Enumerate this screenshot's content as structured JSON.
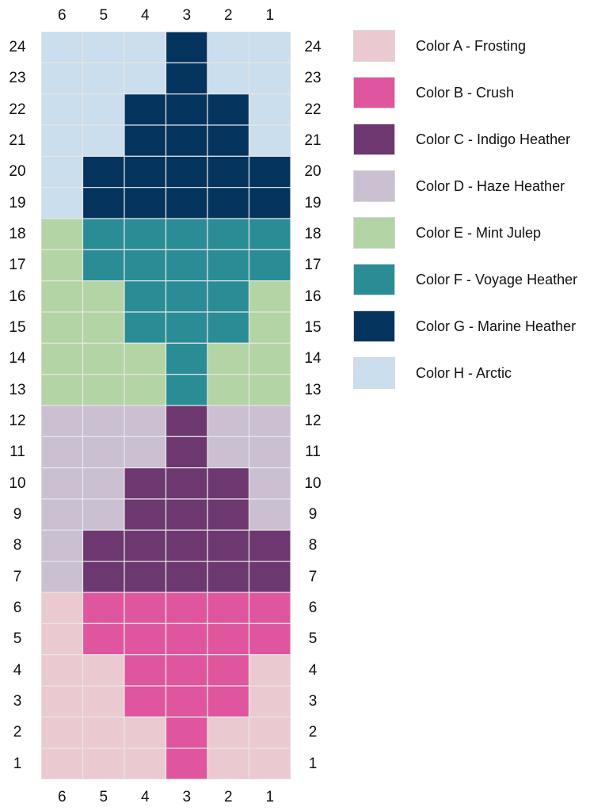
{
  "chart_data": {
    "type": "heatmap",
    "columns": [
      "6",
      "5",
      "4",
      "3",
      "2",
      "1"
    ],
    "rows": [
      "24",
      "23",
      "22",
      "21",
      "20",
      "19",
      "18",
      "17",
      "16",
      "15",
      "14",
      "13",
      "12",
      "11",
      "10",
      "9",
      "8",
      "7",
      "6",
      "5",
      "4",
      "3",
      "2",
      "1"
    ],
    "grid": [
      "HHHGHH",
      "HHHGHH",
      "HHGGGH",
      "HHGGGH",
      "HGGGGG",
      "HGGGGG",
      "EFFFFF",
      "EFFFFF",
      "EEFFFE",
      "EEFFFE",
      "EEEFEE",
      "EEEFEE",
      "DDDCDD",
      "DDDCDD",
      "DDCCCD",
      "DDCCCD",
      "DCCCCC",
      "DCCCCC",
      "ABBBBB",
      "ABBBBB",
      "AABBBA",
      "AABBBA",
      "AAABAA",
      "AAABAA"
    ],
    "colors": {
      "A": "#ebc9d0",
      "B": "#e0569e",
      "C": "#6d3870",
      "D": "#cbbfd2",
      "E": "#b3d4a4",
      "F": "#2a8d96",
      "G": "#04335e",
      "H": "#cadeed"
    },
    "legend": [
      {
        "key": "A",
        "label": "Color A - Frosting"
      },
      {
        "key": "B",
        "label": "Color B - Crush"
      },
      {
        "key": "C",
        "label": "Color C - Indigo Heather"
      },
      {
        "key": "D",
        "label": "Color D - Haze Heather"
      },
      {
        "key": "E",
        "label": "Color E - Mint Julep"
      },
      {
        "key": "F",
        "label": "Color F - Voyage Heather"
      },
      {
        "key": "G",
        "label": "Color G - Marine Heather"
      },
      {
        "key": "H",
        "label": "Color H - Arctic"
      }
    ]
  }
}
